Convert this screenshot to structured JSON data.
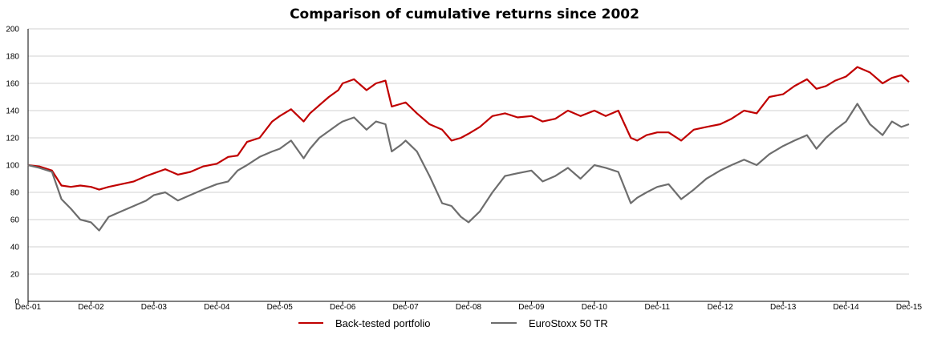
{
  "chart_data": {
    "type": "line",
    "title": "Comparison of cumulative returns since 2002",
    "xlabel": "",
    "ylabel": "",
    "ylim": [
      0,
      200
    ],
    "y_ticks": [
      "0",
      "20",
      "40",
      "60",
      "80",
      "100",
      "120",
      "140",
      "160",
      "180",
      "200"
    ],
    "x_ticks": [
      "Dec-01",
      "Dec-02",
      "Dec-03",
      "Dec-04",
      "Dec-05",
      "Dec-06",
      "Dec-07",
      "Dec-08",
      "Dec-09",
      "Dec-10",
      "Dec-11",
      "Dec-12",
      "Dec-13",
      "Dec-14",
      "Dec-15"
    ],
    "xlim": [
      2001.92,
      2015.92
    ],
    "grid": true,
    "legend_position": "bottom",
    "series": [
      {
        "name": "Back-tested portfolio",
        "color": "#c00000",
        "x": [
          2001.92,
          2002.1,
          2002.3,
          2002.45,
          2002.6,
          2002.75,
          2002.92,
          2003.05,
          2003.2,
          2003.4,
          2003.6,
          2003.8,
          2003.92,
          2004.1,
          2004.3,
          2004.5,
          2004.7,
          2004.92,
          2005.1,
          2005.25,
          2005.4,
          2005.6,
          2005.8,
          2005.92,
          2006.1,
          2006.3,
          2006.4,
          2006.55,
          2006.7,
          2006.85,
          2006.92,
          2007.1,
          2007.3,
          2007.45,
          2007.6,
          2007.7,
          2007.85,
          2007.92,
          2008.1,
          2008.3,
          2008.5,
          2008.65,
          2008.8,
          2008.92,
          2009.1,
          2009.3,
          2009.5,
          2009.7,
          2009.92,
          2010.1,
          2010.3,
          2010.5,
          2010.7,
          2010.92,
          2011.1,
          2011.3,
          2011.5,
          2011.6,
          2011.75,
          2011.92,
          2012.1,
          2012.3,
          2012.5,
          2012.7,
          2012.92,
          2013.1,
          2013.3,
          2013.5,
          2013.7,
          2013.92,
          2014.1,
          2014.3,
          2014.45,
          2014.6,
          2014.75,
          2014.92,
          2015.1,
          2015.3,
          2015.5,
          2015.65,
          2015.8,
          2015.92
        ],
        "y": [
          100,
          99,
          96,
          85,
          84,
          85,
          84,
          82,
          84,
          86,
          88,
          92,
          94,
          97,
          93,
          95,
          99,
          101,
          106,
          107,
          117,
          120,
          132,
          136,
          141,
          132,
          138,
          144,
          150,
          155,
          160,
          163,
          155,
          160,
          162,
          143,
          145,
          146,
          138,
          130,
          126,
          118,
          120,
          123,
          128,
          136,
          138,
          135,
          136,
          132,
          134,
          140,
          136,
          140,
          136,
          140,
          120,
          118,
          122,
          124,
          124,
          118,
          126,
          128,
          130,
          134,
          140,
          138,
          150,
          152,
          158,
          163,
          156,
          158,
          162,
          165,
          172,
          168,
          160,
          164,
          166,
          161
        ]
      },
      {
        "name": "EuroStoxx 50 TR",
        "color": "#6d6d6d",
        "x": [
          2001.92,
          2002.1,
          2002.3,
          2002.45,
          2002.6,
          2002.75,
          2002.92,
          2003.05,
          2003.2,
          2003.4,
          2003.6,
          2003.8,
          2003.92,
          2004.1,
          2004.3,
          2004.5,
          2004.7,
          2004.92,
          2005.1,
          2005.25,
          2005.4,
          2005.6,
          2005.8,
          2005.92,
          2006.1,
          2006.3,
          2006.4,
          2006.55,
          2006.7,
          2006.85,
          2006.92,
          2007.1,
          2007.3,
          2007.45,
          2007.6,
          2007.7,
          2007.85,
          2007.92,
          2008.1,
          2008.3,
          2008.5,
          2008.65,
          2008.8,
          2008.92,
          2009.1,
          2009.3,
          2009.5,
          2009.7,
          2009.92,
          2010.1,
          2010.3,
          2010.5,
          2010.7,
          2010.92,
          2011.1,
          2011.3,
          2011.5,
          2011.6,
          2011.75,
          2011.92,
          2012.1,
          2012.3,
          2012.5,
          2012.7,
          2012.92,
          2013.1,
          2013.3,
          2013.5,
          2013.7,
          2013.92,
          2014.1,
          2014.3,
          2014.45,
          2014.6,
          2014.75,
          2014.92,
          2015.1,
          2015.3,
          2015.5,
          2015.65,
          2015.8,
          2015.92
        ],
        "y": [
          100,
          98,
          95,
          75,
          68,
          60,
          58,
          52,
          62,
          66,
          70,
          74,
          78,
          80,
          74,
          78,
          82,
          86,
          88,
          96,
          100,
          106,
          110,
          112,
          118,
          105,
          112,
          120,
          125,
          130,
          132,
          135,
          126,
          132,
          130,
          110,
          115,
          118,
          110,
          92,
          72,
          70,
          62,
          58,
          66,
          80,
          92,
          94,
          96,
          88,
          92,
          98,
          90,
          100,
          98,
          95,
          72,
          76,
          80,
          84,
          86,
          75,
          82,
          90,
          96,
          100,
          104,
          100,
          108,
          114,
          118,
          122,
          112,
          120,
          126,
          132,
          145,
          130,
          122,
          132,
          128,
          130
        ]
      }
    ]
  }
}
